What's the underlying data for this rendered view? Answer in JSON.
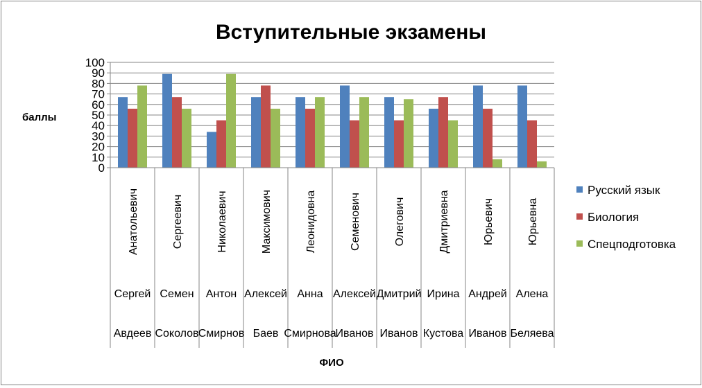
{
  "chart_data": {
    "type": "bar",
    "title": "Вступительные экзамены",
    "xlabel": "ФИО",
    "ylabel": "баллы",
    "ylim": [
      0,
      100
    ],
    "yticks": [
      0,
      10,
      20,
      30,
      40,
      50,
      60,
      70,
      80,
      90,
      100
    ],
    "grid": true,
    "legend_position": "right",
    "categories": [
      [
        "Анатольевич",
        "Сергей",
        "Авдеев"
      ],
      [
        "Сергеевич",
        "Семен",
        "Соколов"
      ],
      [
        "Николаевич",
        "Антон",
        "Смирнов"
      ],
      [
        "Максимович",
        "Алексей",
        "Баев"
      ],
      [
        "Леонидовна",
        "Анна",
        "Смирнова"
      ],
      [
        "Семенович",
        "Алексей",
        "Иванов"
      ],
      [
        "Олегович",
        "Дмитрий",
        "Иванов"
      ],
      [
        "Дмитриевна",
        "Ирина",
        "Кустова"
      ],
      [
        "Юрьевич",
        "Андрей",
        "Иванов"
      ],
      [
        "Юрьевна",
        "Алена",
        "Беляева"
      ]
    ],
    "series": [
      {
        "name": "Русский язык",
        "color": "#4f81bd",
        "values": [
          67,
          89,
          34,
          67,
          67,
          78,
          67,
          56,
          78,
          78
        ]
      },
      {
        "name": "Биология",
        "color": "#c0504d",
        "values": [
          56,
          67,
          45,
          78,
          56,
          45,
          45,
          67,
          56,
          45
        ]
      },
      {
        "name": "Спецподготовка",
        "color": "#9bbb59",
        "values": [
          78,
          56,
          89,
          56,
          67,
          67,
          65,
          45,
          8,
          6
        ]
      }
    ]
  }
}
